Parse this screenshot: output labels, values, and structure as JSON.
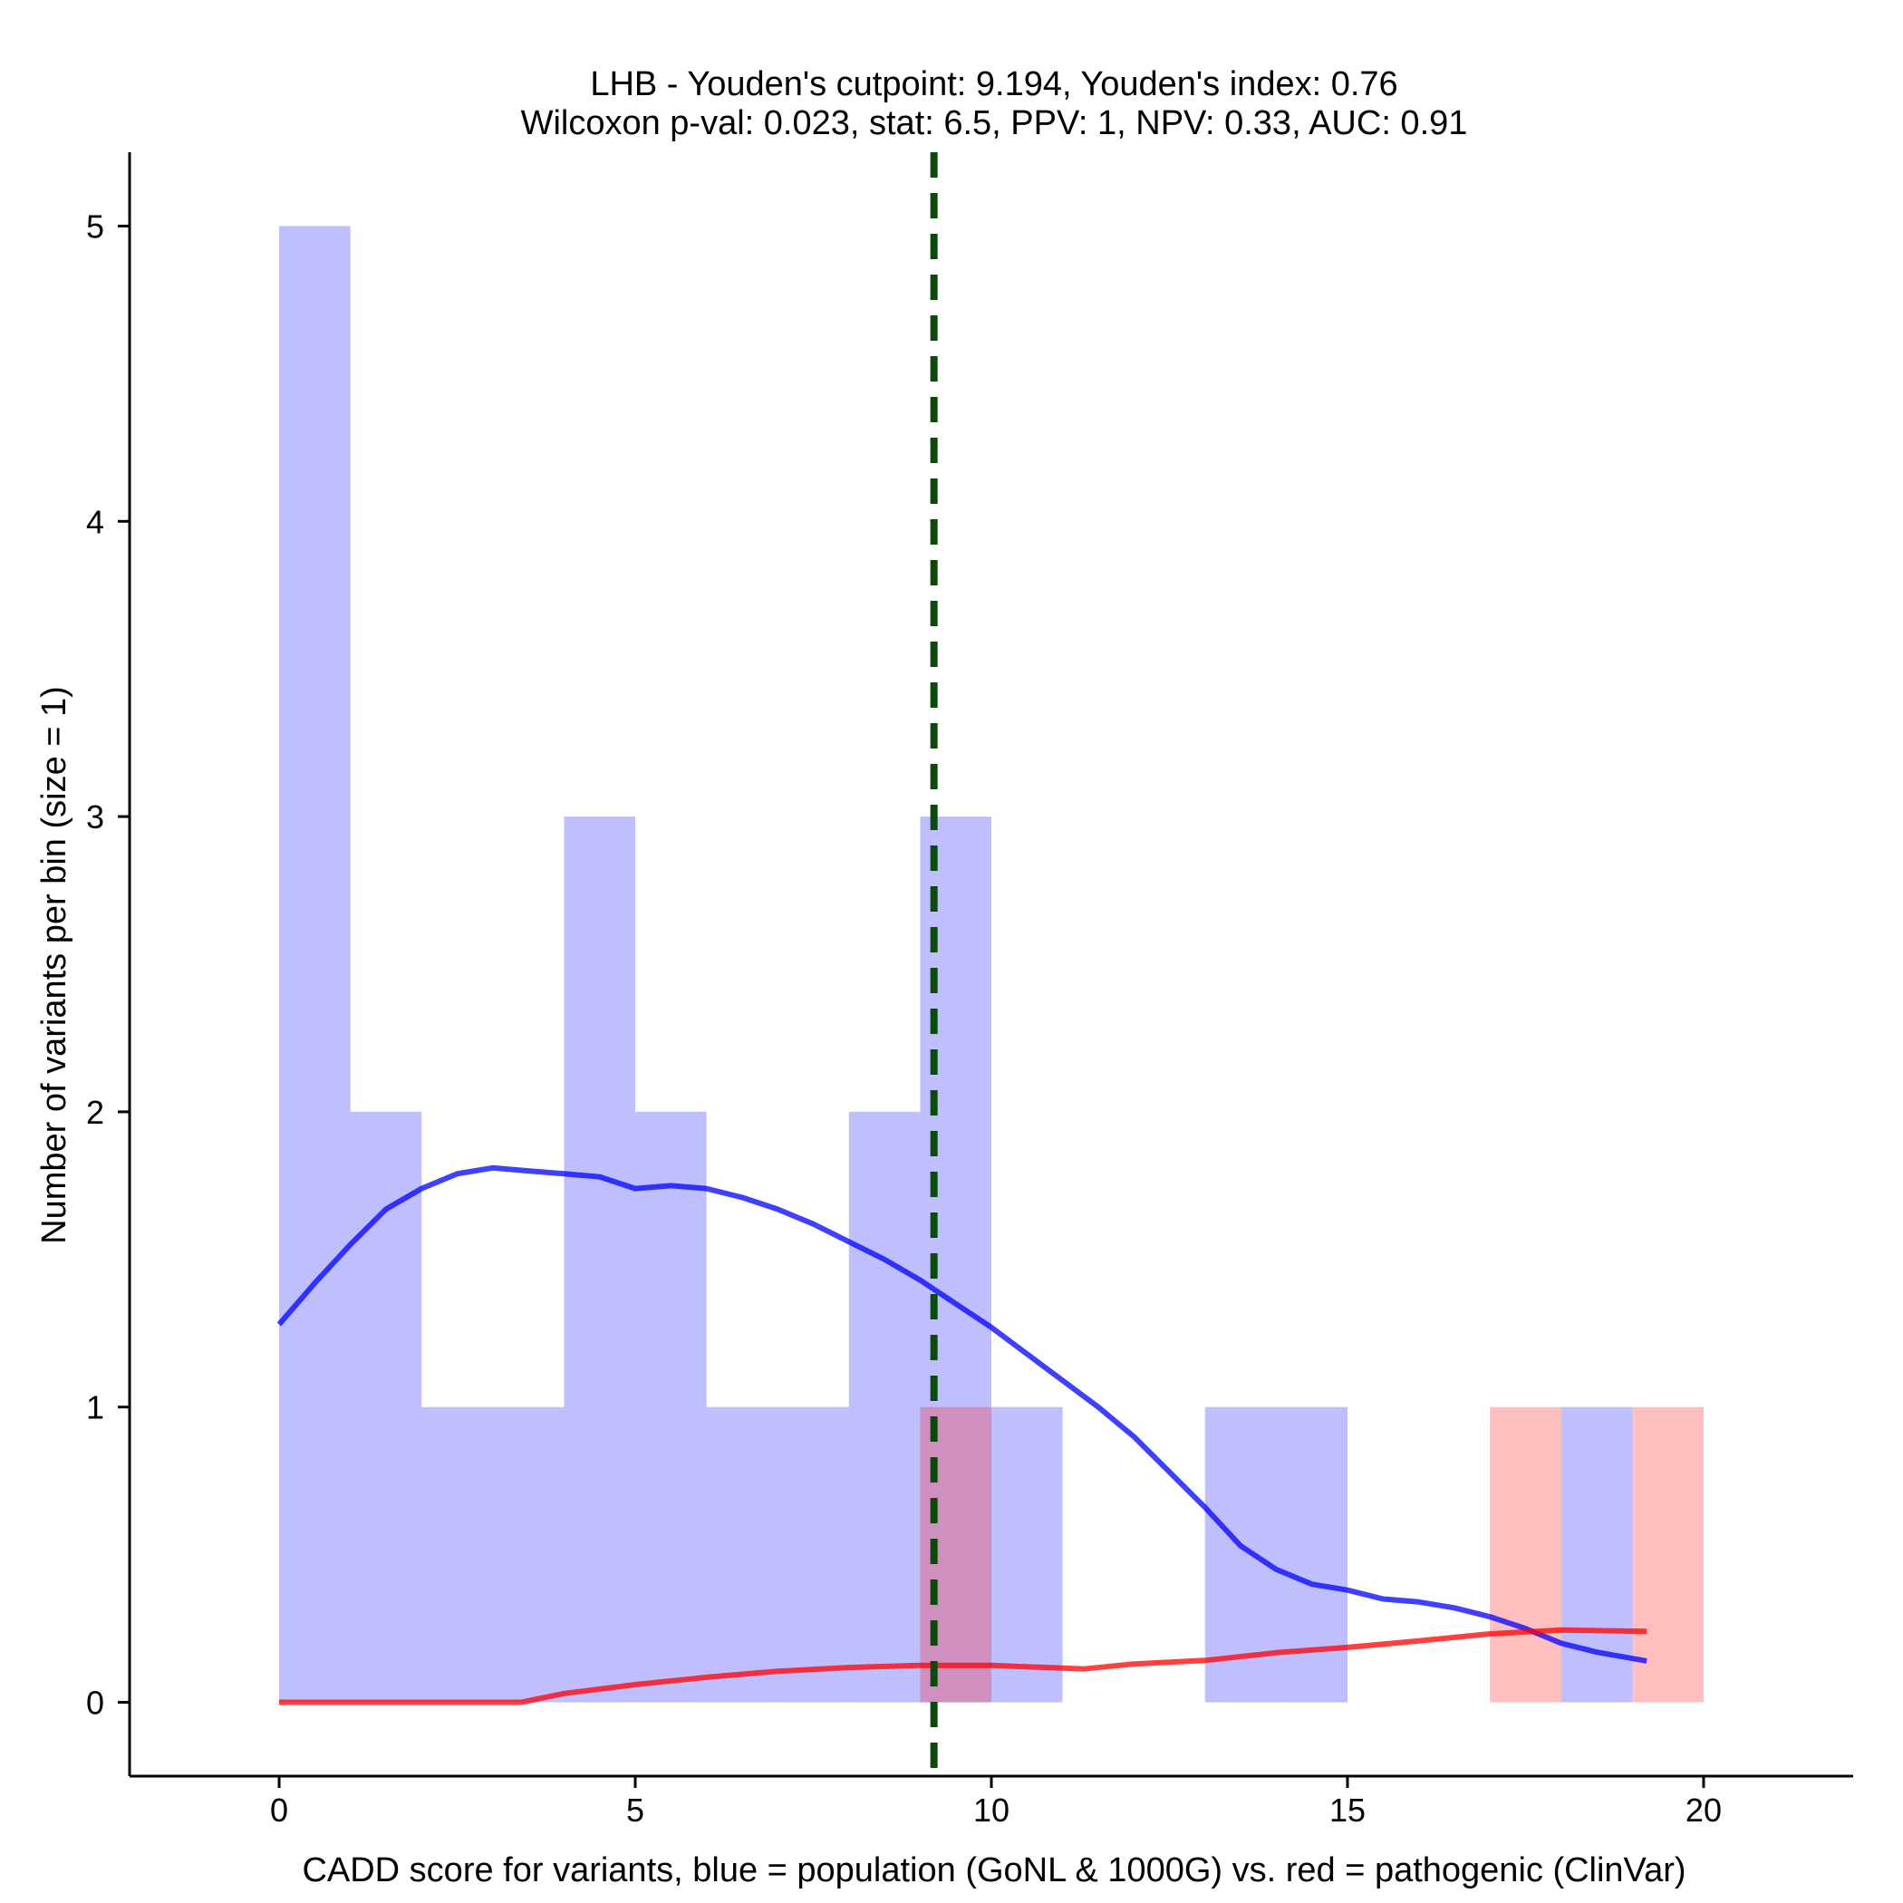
{
  "chart_data": {
    "type": "histogram",
    "title_lines": [
      "LHB - Youden's cutpoint: 9.194, Youden's index: 0.76",
      "Wilcoxon p-val: 0.023, stat: 6.5, PPV: 1, NPV: 0.33, AUC: 0.91"
    ],
    "xlabel": "CADD score for variants, blue = population (GoNL & 1000G) vs. red = pathogenic (ClinVar)",
    "ylabel": "Number of variants per bin (size = 1)",
    "xlim": [
      -2.1,
      22.1
    ],
    "ylim": [
      -0.25,
      5.25
    ],
    "x_ticks": [
      0,
      5,
      10,
      15,
      20
    ],
    "y_ticks": [
      0,
      1,
      2,
      3,
      4,
      5
    ],
    "bin_width": 1,
    "cutpoint": 9.194,
    "colors": {
      "population": "#0000ff",
      "pathogenic": "#ff0000",
      "cutpoint": "#0b4a0b"
    },
    "series": [
      {
        "key": "population",
        "bins": [
          {
            "x": 0,
            "count": 5
          },
          {
            "x": 1,
            "count": 2
          },
          {
            "x": 2,
            "count": 1
          },
          {
            "x": 3,
            "count": 1
          },
          {
            "x": 4,
            "count": 3
          },
          {
            "x": 5,
            "count": 2
          },
          {
            "x": 6,
            "count": 1
          },
          {
            "x": 7,
            "count": 1
          },
          {
            "x": 8,
            "count": 2
          },
          {
            "x": 9,
            "count": 3
          },
          {
            "x": 10,
            "count": 1
          },
          {
            "x": 13,
            "count": 1
          },
          {
            "x": 14,
            "count": 1
          },
          {
            "x": 18,
            "count": 1
          }
        ],
        "density": [
          [
            0,
            1.28
          ],
          [
            0.5,
            1.42
          ],
          [
            1,
            1.55
          ],
          [
            1.5,
            1.67
          ],
          [
            2,
            1.74
          ],
          [
            2.5,
            1.79
          ],
          [
            3,
            1.81
          ],
          [
            3.5,
            1.8
          ],
          [
            4,
            1.79
          ],
          [
            4.5,
            1.78
          ],
          [
            5,
            1.74
          ],
          [
            5.5,
            1.75
          ],
          [
            6,
            1.74
          ],
          [
            6.5,
            1.71
          ],
          [
            7,
            1.67
          ],
          [
            7.5,
            1.62
          ],
          [
            8,
            1.56
          ],
          [
            8.5,
            1.5
          ],
          [
            9,
            1.43
          ],
          [
            9.5,
            1.35
          ],
          [
            10,
            1.27
          ],
          [
            10.5,
            1.18
          ],
          [
            11,
            1.09
          ],
          [
            11.5,
            1.0
          ],
          [
            12,
            0.9
          ],
          [
            12.5,
            0.78
          ],
          [
            13,
            0.66
          ],
          [
            13.5,
            0.53
          ],
          [
            14,
            0.45
          ],
          [
            14.5,
            0.4
          ],
          [
            15,
            0.38
          ],
          [
            15.5,
            0.35
          ],
          [
            16,
            0.34
          ],
          [
            16.5,
            0.32
          ],
          [
            17,
            0.29
          ],
          [
            17.5,
            0.25
          ],
          [
            18,
            0.2
          ],
          [
            18.5,
            0.17
          ],
          [
            19.2,
            0.14
          ]
        ]
      },
      {
        "key": "pathogenic",
        "bins": [
          {
            "x": 9,
            "count": 1
          },
          {
            "x": 17,
            "count": 1
          },
          {
            "x": 19,
            "count": 1
          }
        ],
        "density": [
          [
            0,
            0
          ],
          [
            1,
            0
          ],
          [
            2,
            0
          ],
          [
            3,
            0
          ],
          [
            3.4,
            0
          ],
          [
            4,
            0.03
          ],
          [
            5,
            0.06
          ],
          [
            6,
            0.085
          ],
          [
            7,
            0.105
          ],
          [
            8,
            0.118
          ],
          [
            9,
            0.125
          ],
          [
            10,
            0.125
          ],
          [
            11,
            0.116
          ],
          [
            11.3,
            0.113
          ],
          [
            12,
            0.13
          ],
          [
            13,
            0.142
          ],
          [
            14,
            0.168
          ],
          [
            15,
            0.186
          ],
          [
            16,
            0.208
          ],
          [
            17,
            0.232
          ],
          [
            18,
            0.245
          ],
          [
            19.2,
            0.24
          ]
        ]
      }
    ]
  }
}
